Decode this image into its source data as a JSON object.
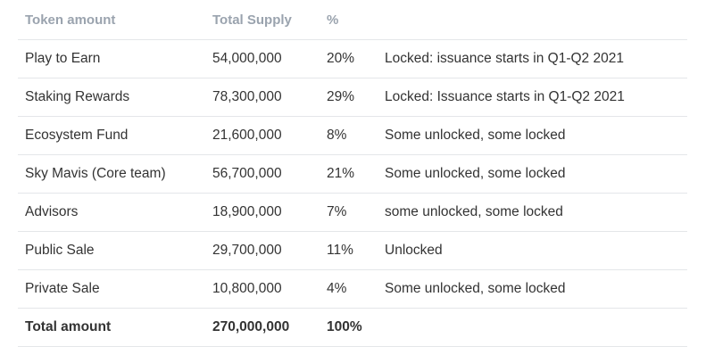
{
  "table": {
    "headers": [
      "Token amount",
      "Total Supply",
      "%",
      ""
    ],
    "rows": [
      [
        "Play to Earn",
        "54,000,000",
        "20%",
        "Locked: issuance starts in Q1-Q2 2021"
      ],
      [
        "Staking Rewards",
        "78,300,000",
        "29%",
        "Locked: Issuance starts in Q1-Q2 2021"
      ],
      [
        "Ecosystem Fund",
        "21,600,000",
        "8%",
        "Some unlocked, some locked"
      ],
      [
        "Sky Mavis (Core team)",
        "56,700,000",
        "21%",
        "Some unlocked, some locked"
      ],
      [
        "Advisors",
        "18,900,000",
        "7%",
        "some unlocked, some locked"
      ],
      [
        "Public Sale",
        "29,700,000",
        "11%",
        "Unlocked"
      ],
      [
        "Private Sale",
        "10,800,000",
        "4%",
        "Some unlocked, some locked"
      ]
    ],
    "total": [
      "Total amount",
      "270,000,000",
      "100%",
      ""
    ]
  }
}
